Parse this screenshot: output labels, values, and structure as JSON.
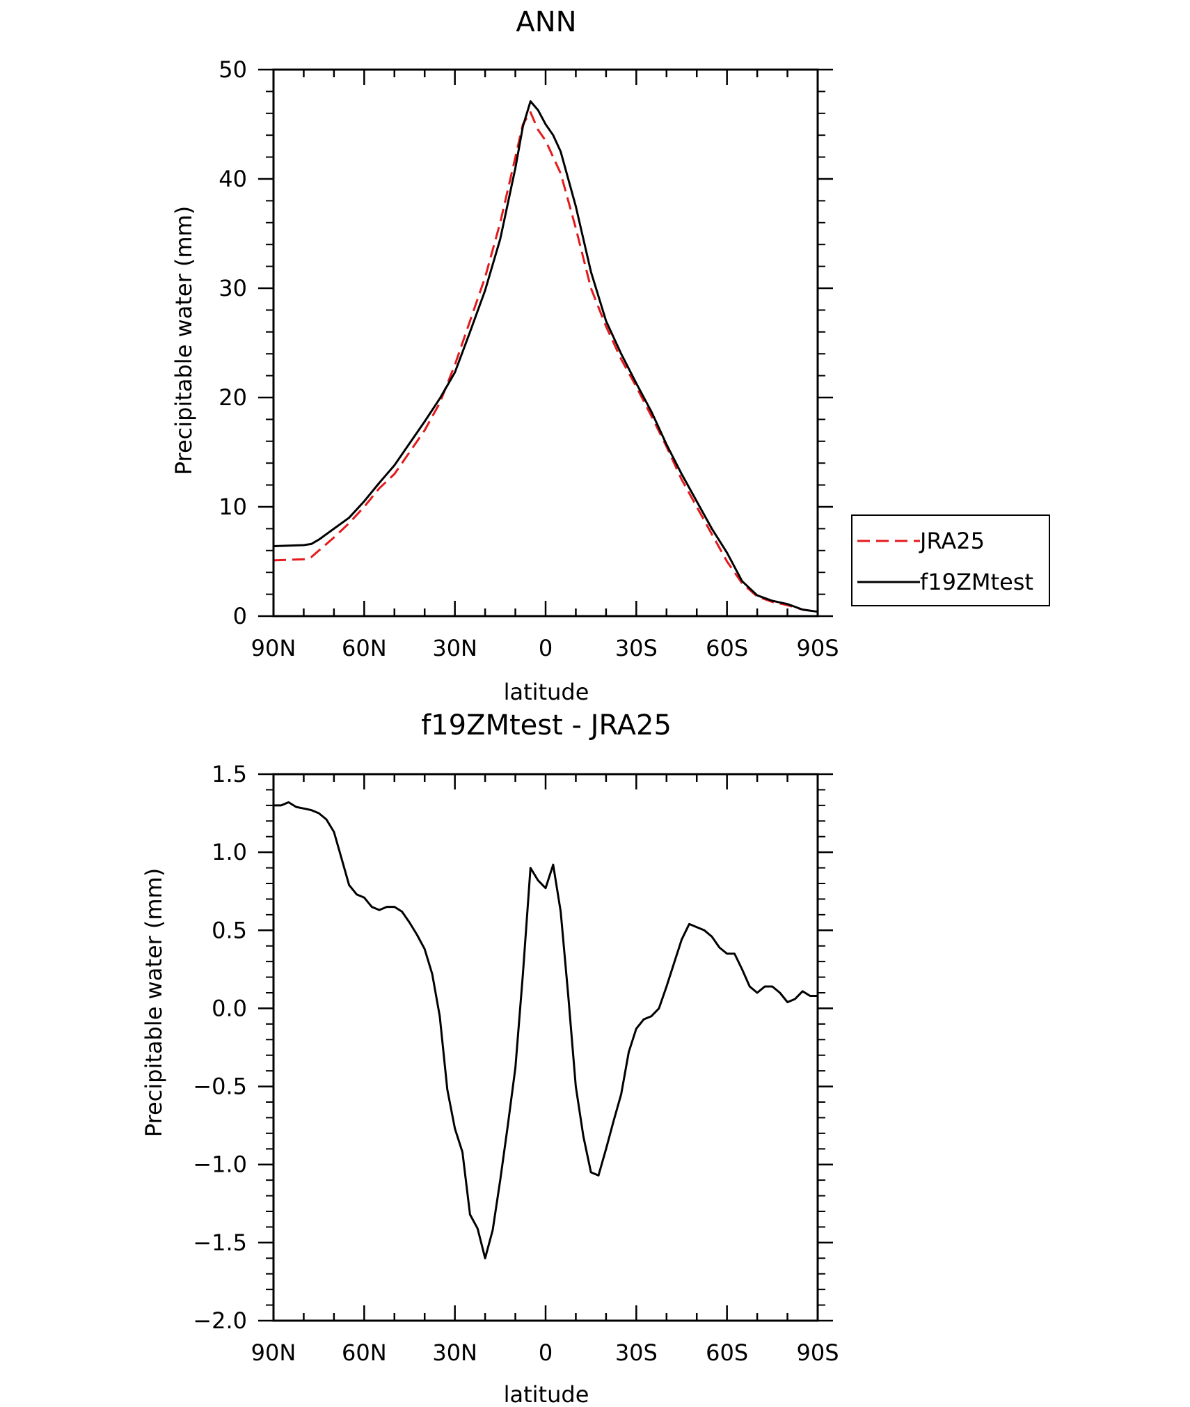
{
  "chart_data": [
    {
      "type": "line",
      "title": "ANN",
      "xlabel": "latitude",
      "ylabel": "Precipitable water (mm)",
      "xlim": [
        90,
        -90
      ],
      "ylim": [
        0,
        50
      ],
      "x_ticks": [
        90,
        60,
        30,
        0,
        -30,
        -60,
        -90
      ],
      "x_tick_labels": [
        "90N",
        "60N",
        "30N",
        "0",
        "30S",
        "60S",
        "90S"
      ],
      "y_ticks": [
        0,
        10,
        20,
        30,
        40,
        50
      ],
      "y_tick_labels": [
        "0",
        "10",
        "20",
        "30",
        "40",
        "50"
      ],
      "grid": false,
      "legend": {
        "placement": "right",
        "entries": [
          {
            "label": "JRA25",
            "color": "#e41a1c",
            "style": "dashed"
          },
          {
            "label": "f19ZMtest",
            "color": "#000000",
            "style": "solid"
          }
        ]
      },
      "series": [
        {
          "name": "JRA25",
          "color": "#e41a1c",
          "style": "dashed",
          "points": [
            [
              90,
              5.1
            ],
            [
              85,
              5.15
            ],
            [
              80,
              5.2
            ],
            [
              77.5,
              5.4
            ],
            [
              75,
              6.0
            ],
            [
              70,
              7.2
            ],
            [
              65,
              8.5
            ],
            [
              60,
              10.0
            ],
            [
              55,
              11.7
            ],
            [
              50,
              13.0
            ],
            [
              45,
              15.0
            ],
            [
              40,
              17.0
            ],
            [
              35,
              19.5
            ],
            [
              30,
              23.0
            ],
            [
              25,
              27.0
            ],
            [
              20,
              31.0
            ],
            [
              15,
              36.0
            ],
            [
              10,
              42.0
            ],
            [
              7.5,
              45.0
            ],
            [
              5,
              46.1
            ],
            [
              2.5,
              44.5
            ],
            [
              0,
              43.5
            ],
            [
              -5,
              40.5
            ],
            [
              -10,
              35.5
            ],
            [
              -15,
              30.0
            ],
            [
              -20,
              26.5
            ],
            [
              -25,
              23.5
            ],
            [
              -30,
              21.0
            ],
            [
              -35,
              18.3
            ],
            [
              -40,
              15.5
            ],
            [
              -45,
              12.5
            ],
            [
              -50,
              10.0
            ],
            [
              -55,
              7.5
            ],
            [
              -60,
              5.0
            ],
            [
              -65,
              3.0
            ],
            [
              -70,
              1.8
            ],
            [
              -75,
              1.3
            ],
            [
              -80,
              1.0
            ],
            [
              -85,
              0.6
            ],
            [
              -90,
              0.4
            ]
          ]
        },
        {
          "name": "f19ZMtest",
          "color": "#000000",
          "style": "solid",
          "points": [
            [
              90,
              6.4
            ],
            [
              85,
              6.45
            ],
            [
              80,
              6.5
            ],
            [
              77.5,
              6.6
            ],
            [
              75,
              7.0
            ],
            [
              70,
              8.0
            ],
            [
              65,
              9.0
            ],
            [
              60,
              10.5
            ],
            [
              55,
              12.2
            ],
            [
              50,
              13.8
            ],
            [
              45,
              15.8
            ],
            [
              40,
              17.8
            ],
            [
              35,
              19.9
            ],
            [
              30,
              22.3
            ],
            [
              25,
              26.0
            ],
            [
              20,
              29.8
            ],
            [
              15,
              34.5
            ],
            [
              10,
              41.0
            ],
            [
              7.5,
              44.8
            ],
            [
              5,
              47.1
            ],
            [
              2.5,
              46.3
            ],
            [
              0,
              45.0
            ],
            [
              -2.5,
              44.0
            ],
            [
              -5,
              42.5
            ],
            [
              -10,
              37.5
            ],
            [
              -15,
              31.5
            ],
            [
              -20,
              27.0
            ],
            [
              -25,
              24.0
            ],
            [
              -30,
              21.3
            ],
            [
              -35,
              18.7
            ],
            [
              -40,
              15.7
            ],
            [
              -45,
              13.0
            ],
            [
              -50,
              10.5
            ],
            [
              -55,
              8.0
            ],
            [
              -60,
              5.8
            ],
            [
              -65,
              3.2
            ],
            [
              -70,
              1.9
            ],
            [
              -75,
              1.4
            ],
            [
              -80,
              1.1
            ],
            [
              -85,
              0.6
            ],
            [
              -90,
              0.4
            ]
          ]
        }
      ]
    },
    {
      "type": "line",
      "title": "f19ZMtest - JRA25",
      "xlabel": "latitude",
      "ylabel": "Precipitable water (mm)",
      "xlim": [
        90,
        -90
      ],
      "ylim": [
        -2.0,
        1.5
      ],
      "x_ticks": [
        90,
        60,
        30,
        0,
        -30,
        -60,
        -90
      ],
      "x_tick_labels": [
        "90N",
        "60N",
        "30N",
        "0",
        "30S",
        "60S",
        "90S"
      ],
      "y_ticks": [
        -2.0,
        -1.5,
        -1.0,
        -0.5,
        0.0,
        0.5,
        1.0,
        1.5
      ],
      "y_tick_labels": [
        "−2.0",
        "−1.5",
        "−1.0",
        "−0.5",
        "0.0",
        "0.5",
        "1.0",
        "1.5"
      ],
      "grid": false,
      "series": [
        {
          "color": "#000000",
          "style": "solid",
          "points": [
            [
              90,
              1.3
            ],
            [
              87.5,
              1.3
            ],
            [
              85,
              1.32
            ],
            [
              82.5,
              1.29
            ],
            [
              80,
              1.28
            ],
            [
              77.5,
              1.27
            ],
            [
              75,
              1.25
            ],
            [
              72.5,
              1.21
            ],
            [
              70,
              1.13
            ],
            [
              67.5,
              0.96
            ],
            [
              65,
              0.79
            ],
            [
              62.5,
              0.73
            ],
            [
              60,
              0.71
            ],
            [
              57.5,
              0.65
            ],
            [
              55,
              0.63
            ],
            [
              52.5,
              0.65
            ],
            [
              50,
              0.65
            ],
            [
              47.5,
              0.62
            ],
            [
              45,
              0.55
            ],
            [
              42.5,
              0.47
            ],
            [
              40,
              0.38
            ],
            [
              37.5,
              0.22
            ],
            [
              35,
              -0.05
            ],
            [
              32.5,
              -0.52
            ],
            [
              30,
              -0.77
            ],
            [
              27.5,
              -0.92
            ],
            [
              25,
              -1.32
            ],
            [
              22.5,
              -1.41
            ],
            [
              20,
              -1.6
            ],
            [
              17.5,
              -1.42
            ],
            [
              15,
              -1.1
            ],
            [
              12.5,
              -0.75
            ],
            [
              10,
              -0.38
            ],
            [
              7.5,
              0.22
            ],
            [
              5,
              0.9
            ],
            [
              2.5,
              0.82
            ],
            [
              0,
              0.77
            ],
            [
              -2.5,
              0.92
            ],
            [
              -5,
              0.62
            ],
            [
              -7.5,
              0.08
            ],
            [
              -10,
              -0.5
            ],
            [
              -12.5,
              -0.82
            ],
            [
              -15,
              -1.05
            ],
            [
              -17.5,
              -1.07
            ],
            [
              -20,
              -0.9
            ],
            [
              -22.5,
              -0.72
            ],
            [
              -25,
              -0.55
            ],
            [
              -27.5,
              -0.28
            ],
            [
              -30,
              -0.13
            ],
            [
              -32.5,
              -0.07
            ],
            [
              -35,
              -0.05
            ],
            [
              -37.5,
              0.0
            ],
            [
              -40,
              0.14
            ],
            [
              -42.5,
              0.29
            ],
            [
              -45,
              0.44
            ],
            [
              -47.5,
              0.54
            ],
            [
              -50,
              0.52
            ],
            [
              -52.5,
              0.5
            ],
            [
              -55,
              0.46
            ],
            [
              -57.5,
              0.39
            ],
            [
              -60,
              0.35
            ],
            [
              -62.5,
              0.35
            ],
            [
              -65,
              0.25
            ],
            [
              -67.5,
              0.14
            ],
            [
              -70,
              0.1
            ],
            [
              -72.5,
              0.14
            ],
            [
              -75,
              0.14
            ],
            [
              -77.5,
              0.1
            ],
            [
              -80,
              0.04
            ],
            [
              -82.5,
              0.06
            ],
            [
              -85,
              0.11
            ],
            [
              -87.5,
              0.08
            ],
            [
              -90,
              0.08
            ]
          ]
        }
      ]
    }
  ]
}
